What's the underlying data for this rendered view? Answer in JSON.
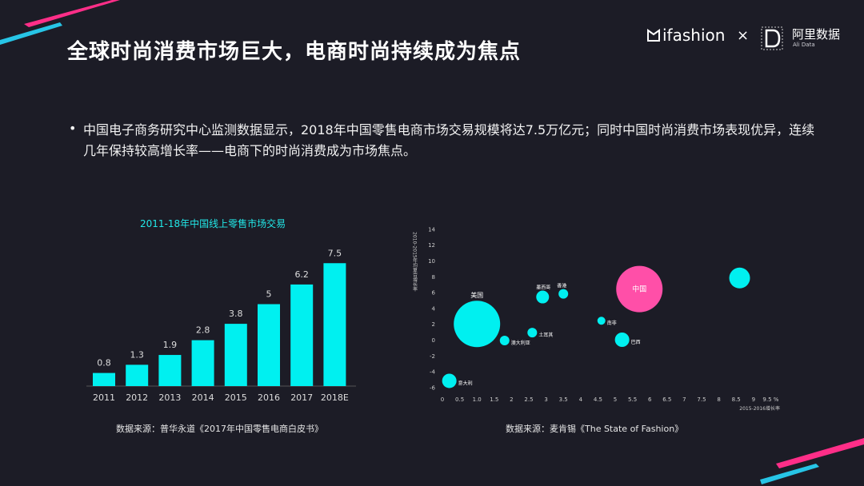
{
  "header": {
    "title": "全球时尚消费市场巨大，电商时尚持续成为焦点",
    "logo_ifashion": "ifashion",
    "logo_x": "×",
    "logo_ali_name": "阿里数据",
    "logo_ali_sub": "Ali Data"
  },
  "bullet": {
    "text": "中国电子商务研究中心监测数据显示，2018年中国零售电商市场交易规模将达7.5万亿元；同时中国时尚消费市场表现优异，连续几年保持较高增长率——电商下的时尚消费成为市场焦点。"
  },
  "colors": {
    "accent": "#00f0f0",
    "highlight": "#ff4fa8",
    "background": "#1c1c26",
    "pink_stripe": "#ff2e88",
    "blue_stripe": "#27c5e6"
  },
  "chart_data": [
    {
      "type": "bar",
      "title": "2011-18年中国线上零售市场交易",
      "categories": [
        "2011",
        "2012",
        "2013",
        "2014",
        "2015",
        "2016",
        "2017",
        "2018E"
      ],
      "values": [
        0.8,
        1.3,
        1.9,
        2.8,
        3.8,
        5,
        6.2,
        7.5
      ],
      "value_labels": [
        "0.8",
        "1.3",
        "1.9",
        "2.8",
        "3.8",
        "5",
        "6.2",
        "7.5"
      ],
      "source": "数据来源：普华永道《2017年中国零售电商白皮书》"
    },
    {
      "type": "scatter",
      "xlabel": "2015-2016增长率",
      "ylabel": "2010-2015年均复合增长率",
      "xlim": [
        0,
        9.5
      ],
      "ylim": [
        -6,
        14
      ],
      "xticks": [
        "0",
        "0.5",
        "1.0",
        "1.5",
        "2",
        "2.5",
        "3",
        "3.5",
        "4",
        "4.5",
        "5",
        "5.5",
        "6",
        "6.5",
        "7",
        "7.5",
        "8",
        "8.5",
        "9",
        "9.5 %"
      ],
      "yticks": [
        "14",
        "12",
        "10",
        "8",
        "6",
        "4",
        "2",
        "0",
        "-2",
        "-4",
        "-6"
      ],
      "points": [
        {
          "label": "美国",
          "x": 1.0,
          "y": 2,
          "r": 29,
          "color": "#00f0f0"
        },
        {
          "label": "墨西哥",
          "x": 2.9,
          "y": 5.4,
          "r": 8,
          "color": "#00f0f0"
        },
        {
          "label": "香港",
          "x": 3.5,
          "y": 5.8,
          "r": 6,
          "color": "#00f0f0"
        },
        {
          "label": "中国",
          "x": 5.7,
          "y": 6.4,
          "r": 29,
          "color": "#ff4fa8"
        },
        {
          "label": "",
          "x": 8.6,
          "y": 7.8,
          "r": 13,
          "color": "#00f0f0"
        },
        {
          "label": "澳大利亚",
          "x": 1.8,
          "y": -0.1,
          "r": 6,
          "color": "#00f0f0"
        },
        {
          "label": "土耳其",
          "x": 2.6,
          "y": 0.9,
          "r": 6,
          "color": "#00f0f0"
        },
        {
          "label": "南非",
          "x": 4.6,
          "y": 2.4,
          "r": 5,
          "color": "#00f0f0"
        },
        {
          "label": "巴西",
          "x": 5.2,
          "y": 0.0,
          "r": 9,
          "color": "#00f0f0"
        },
        {
          "label": "意大利",
          "x": 0.2,
          "y": -5.2,
          "r": 9,
          "color": "#00f0f0"
        }
      ],
      "source": "数据来源：麦肯锡《The State of Fashion》"
    }
  ]
}
